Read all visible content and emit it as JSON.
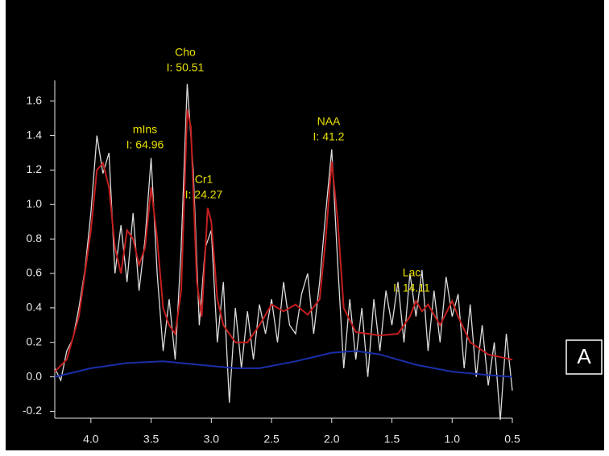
{
  "chart_data": {
    "type": "line",
    "xlim": [
      4.3,
      0.5
    ],
    "ylim": [
      -0.24,
      1.72
    ],
    "xticks": [
      {
        "value": 4,
        "label": "4.0"
      },
      3.5,
      {
        "value": 3,
        "label": "3.0"
      },
      2.5,
      {
        "value": 2,
        "label": "2.0"
      },
      1.5,
      {
        "value": 1,
        "label": "1.0"
      },
      0.5
    ],
    "yticks": [
      -0.2,
      {
        "value": 0,
        "label": "0.0"
      },
      0.2,
      0.4,
      0.6,
      0.8,
      {
        "value": 1,
        "label": "1.0"
      },
      1.2,
      1.4,
      1.6
    ],
    "series": [
      {
        "color": "#dcdcdc",
        "x": [
          4.3,
          4.25,
          4.2,
          4.15,
          4.1,
          4.05,
          4.0,
          3.95,
          3.9,
          3.85,
          3.8,
          3.75,
          3.7,
          3.65,
          3.6,
          3.55,
          3.5,
          3.45,
          3.4,
          3.35,
          3.3,
          3.25,
          3.2,
          3.15,
          3.1,
          3.05,
          3.0,
          2.95,
          2.9,
          2.85,
          2.8,
          2.75,
          2.7,
          2.65,
          2.6,
          2.55,
          2.5,
          2.45,
          2.4,
          2.35,
          2.3,
          2.25,
          2.2,
          2.15,
          2.1,
          2.05,
          2.0,
          1.95,
          1.9,
          1.85,
          1.8,
          1.75,
          1.7,
          1.65,
          1.6,
          1.55,
          1.5,
          1.45,
          1.4,
          1.35,
          1.3,
          1.25,
          1.2,
          1.15,
          1.1,
          1.05,
          1.0,
          0.95,
          0.9,
          0.85,
          0.8,
          0.75,
          0.7,
          0.65,
          0.6,
          0.55,
          0.5
        ],
        "values": [
          0.05,
          -0.02,
          0.15,
          0.22,
          0.4,
          0.62,
          0.95,
          1.4,
          1.18,
          1.3,
          0.6,
          0.88,
          0.55,
          0.95,
          0.5,
          0.8,
          1.27,
          0.6,
          0.15,
          0.45,
          0.1,
          0.75,
          1.7,
          1.2,
          0.3,
          0.75,
          0.85,
          0.2,
          0.55,
          -0.15,
          0.4,
          0.05,
          0.38,
          0.1,
          0.42,
          0.25,
          0.45,
          0.2,
          0.55,
          0.3,
          0.25,
          0.48,
          0.6,
          0.25,
          0.55,
          0.95,
          1.32,
          0.65,
          0.05,
          0.45,
          0.1,
          0.4,
          0.0,
          0.45,
          0.15,
          0.5,
          0.3,
          0.55,
          0.2,
          0.6,
          0.35,
          0.62,
          0.15,
          0.5,
          0.2,
          0.58,
          0.35,
          0.48,
          0.05,
          0.42,
          0.0,
          0.3,
          -0.05,
          0.2,
          -0.25,
          0.25,
          -0.08
        ]
      },
      {
        "color": "#c41e1e",
        "x": [
          4.3,
          4.2,
          4.1,
          4.0,
          3.95,
          3.9,
          3.85,
          3.8,
          3.75,
          3.7,
          3.65,
          3.6,
          3.55,
          3.5,
          3.45,
          3.4,
          3.35,
          3.3,
          3.25,
          3.2,
          3.17,
          3.12,
          3.08,
          3.03,
          3.0,
          2.95,
          2.9,
          2.8,
          2.7,
          2.6,
          2.5,
          2.4,
          2.3,
          2.2,
          2.1,
          2.05,
          2.0,
          1.95,
          1.9,
          1.8,
          1.6,
          1.45,
          1.35,
          1.3,
          1.25,
          1.2,
          1.1,
          1.0,
          0.95,
          0.85,
          0.7,
          0.5
        ],
        "values": [
          0.03,
          0.1,
          0.35,
          0.85,
          1.2,
          1.24,
          1.1,
          0.75,
          0.6,
          0.85,
          0.8,
          0.65,
          0.75,
          1.1,
          0.8,
          0.4,
          0.3,
          0.25,
          0.5,
          1.55,
          1.45,
          0.55,
          0.35,
          0.98,
          0.9,
          0.45,
          0.3,
          0.2,
          0.2,
          0.3,
          0.42,
          0.38,
          0.42,
          0.36,
          0.45,
          0.8,
          1.25,
          0.9,
          0.4,
          0.26,
          0.24,
          0.25,
          0.35,
          0.44,
          0.38,
          0.42,
          0.3,
          0.44,
          0.35,
          0.2,
          0.13,
          0.1
        ]
      },
      {
        "color": "#1a2ea8",
        "x": [
          4.3,
          4.0,
          3.7,
          3.4,
          3.1,
          2.8,
          2.6,
          2.3,
          2.0,
          1.8,
          1.6,
          1.3,
          1.0,
          0.7,
          0.5
        ],
        "values": [
          0.0,
          0.05,
          0.08,
          0.09,
          0.07,
          0.05,
          0.05,
          0.09,
          0.14,
          0.15,
          0.13,
          0.07,
          0.03,
          0.01,
          0.0
        ]
      }
    ],
    "annotations": [
      {
        "label": "Cho",
        "text": "I: 50.51"
      },
      {
        "label": "mIns",
        "text": "I: 64.96"
      },
      {
        "label": "Cr1",
        "text": "I: 24.27"
      },
      {
        "label": "NAA",
        "text": "I: 41.2"
      },
      {
        "label": "Lac",
        "text": "I: 14.11"
      }
    ],
    "panel_label": "A"
  }
}
